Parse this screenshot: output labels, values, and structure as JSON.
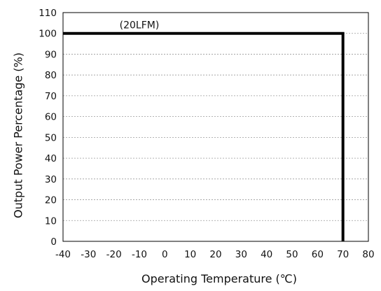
{
  "chart_data": {
    "type": "line",
    "title": "",
    "xlabel": "Operating Temperature (℃)",
    "ylabel": "Output Power Percentage (%)",
    "xlim": [
      -40,
      80
    ],
    "ylim": [
      0,
      110
    ],
    "x_ticks": [
      -40,
      -30,
      -20,
      -10,
      0,
      10,
      20,
      30,
      40,
      50,
      60,
      70,
      80
    ],
    "y_ticks": [
      0,
      10,
      20,
      30,
      40,
      50,
      60,
      70,
      80,
      90,
      100,
      110
    ],
    "grid": "horizontal dashed",
    "series": [
      {
        "x": [
          -40,
          70,
          70
        ],
        "y": [
          100,
          100,
          0
        ],
        "color": "#000000"
      }
    ],
    "annotations": [
      {
        "text": "(20LFM)",
        "x": -10,
        "y": 100
      }
    ]
  }
}
